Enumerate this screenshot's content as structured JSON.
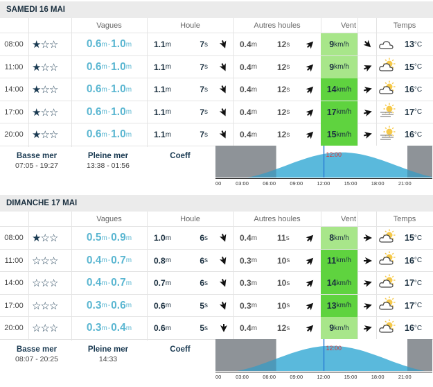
{
  "headers": {
    "vagues": "Vagues",
    "houle": "Houle",
    "autres": "Autres houles",
    "vent": "Vent",
    "temps": "Temps"
  },
  "units": {
    "m": "m",
    "s": "s",
    "kmh": "km/h",
    "c": "°C",
    "dash": " - "
  },
  "tide_labels": {
    "basse": "Basse mer",
    "pleine": "Pleine mer",
    "coeff": "Coeff"
  },
  "axis_ticks": [
    "00",
    "03:00",
    "06:00",
    "09:00",
    "12:00",
    "15:00",
    "18:00",
    "21:00"
  ],
  "days": [
    {
      "title": "SAMEDI 16 MAI",
      "basse": "07:05 - 19:27",
      "pleine": "13:38 - 01:56",
      "now_label": "12:00",
      "rows": [
        {
          "time": "08:00",
          "stars": 1,
          "wmin": "0.6",
          "wmax": "1.0",
          "hh": "1.1",
          "hp": "7",
          "hdir": 160,
          "ah": "0.4",
          "ap": "12",
          "adir": 45,
          "wind": "9",
          "wcolor": "#a8e68a",
          "wdir": 45,
          "wx": "cloud",
          "temp": "13"
        },
        {
          "time": "11:00",
          "stars": 1,
          "wmin": "0.6",
          "wmax": "1.0",
          "hh": "1.1",
          "hp": "7",
          "hdir": 155,
          "ah": "0.4",
          "ap": "12",
          "adir": 45,
          "wind": "9",
          "wcolor": "#a8e68a",
          "wdir": -25,
          "wx": "sun-cloud",
          "temp": "15"
        },
        {
          "time": "14:00",
          "stars": 1,
          "wmin": "0.6",
          "wmax": "1.0",
          "hh": "1.1",
          "hp": "7",
          "hdir": 155,
          "ah": "0.4",
          "ap": "12",
          "adir": 45,
          "wind": "14",
          "wcolor": "#5fd33f",
          "wdir": -15,
          "wx": "sun-cloud",
          "temp": "16"
        },
        {
          "time": "17:00",
          "stars": 1,
          "wmin": "0.6",
          "wmax": "1.0",
          "hh": "1.1",
          "hp": "7",
          "hdir": 155,
          "ah": "0.4",
          "ap": "12",
          "adir": 45,
          "wind": "17",
          "wcolor": "#5fd33f",
          "wdir": -15,
          "wx": "sun-haze",
          "temp": "17"
        },
        {
          "time": "20:00",
          "stars": 1,
          "wmin": "0.6",
          "wmax": "1.0",
          "hh": "1.1",
          "hp": "7",
          "hdir": 155,
          "ah": "0.4",
          "ap": "12",
          "adir": 45,
          "wind": "15",
          "wcolor": "#5fd33f",
          "wdir": -15,
          "wx": "sun-haze",
          "temp": "16"
        }
      ]
    },
    {
      "title": "DIMANCHE 17 MAI",
      "basse": "08:07 - 20:25",
      "pleine": "14:33",
      "now_label": "12:00",
      "rows": [
        {
          "time": "08:00",
          "stars": 1,
          "wmin": "0.5",
          "wmax": "0.9",
          "hh": "1.0",
          "hp": "6",
          "hdir": 160,
          "ah": "0.4",
          "ap": "11",
          "adir": 45,
          "wind": "8",
          "wcolor": "#a8e68a",
          "wdir": 0,
          "wx": "sun-cloud",
          "temp": "15"
        },
        {
          "time": "11:00",
          "stars": 0,
          "wmin": "0.4",
          "wmax": "0.7",
          "hh": "0.8",
          "hp": "6",
          "hdir": 160,
          "ah": "0.3",
          "ap": "10",
          "adir": 45,
          "wind": "11",
          "wcolor": "#5fd33f",
          "wdir": 0,
          "wx": "sun-cloud",
          "temp": "16"
        },
        {
          "time": "14:00",
          "stars": 0,
          "wmin": "0.4",
          "wmax": "0.7",
          "hh": "0.7",
          "hp": "6",
          "hdir": 160,
          "ah": "0.3",
          "ap": "10",
          "adir": 45,
          "wind": "14",
          "wcolor": "#5fd33f",
          "wdir": -15,
          "wx": "sun-cloud",
          "temp": "17"
        },
        {
          "time": "17:00",
          "stars": 0,
          "wmin": "0.3",
          "wmax": "0.6",
          "hh": "0.6",
          "hp": "5",
          "hdir": 160,
          "ah": "0.3",
          "ap": "10",
          "adir": 45,
          "wind": "13",
          "wcolor": "#5fd33f",
          "wdir": -15,
          "wx": "sun-cloud",
          "temp": "17"
        },
        {
          "time": "20:00",
          "stars": 0,
          "wmin": "0.3",
          "wmax": "0.4",
          "hh": "0.6",
          "hp": "5",
          "hdir": 180,
          "ah": "0.4",
          "ap": "12",
          "adir": 45,
          "wind": "9",
          "wcolor": "#a8e68a",
          "wdir": -15,
          "wx": "sun-cloud",
          "temp": "16"
        }
      ]
    }
  ]
}
